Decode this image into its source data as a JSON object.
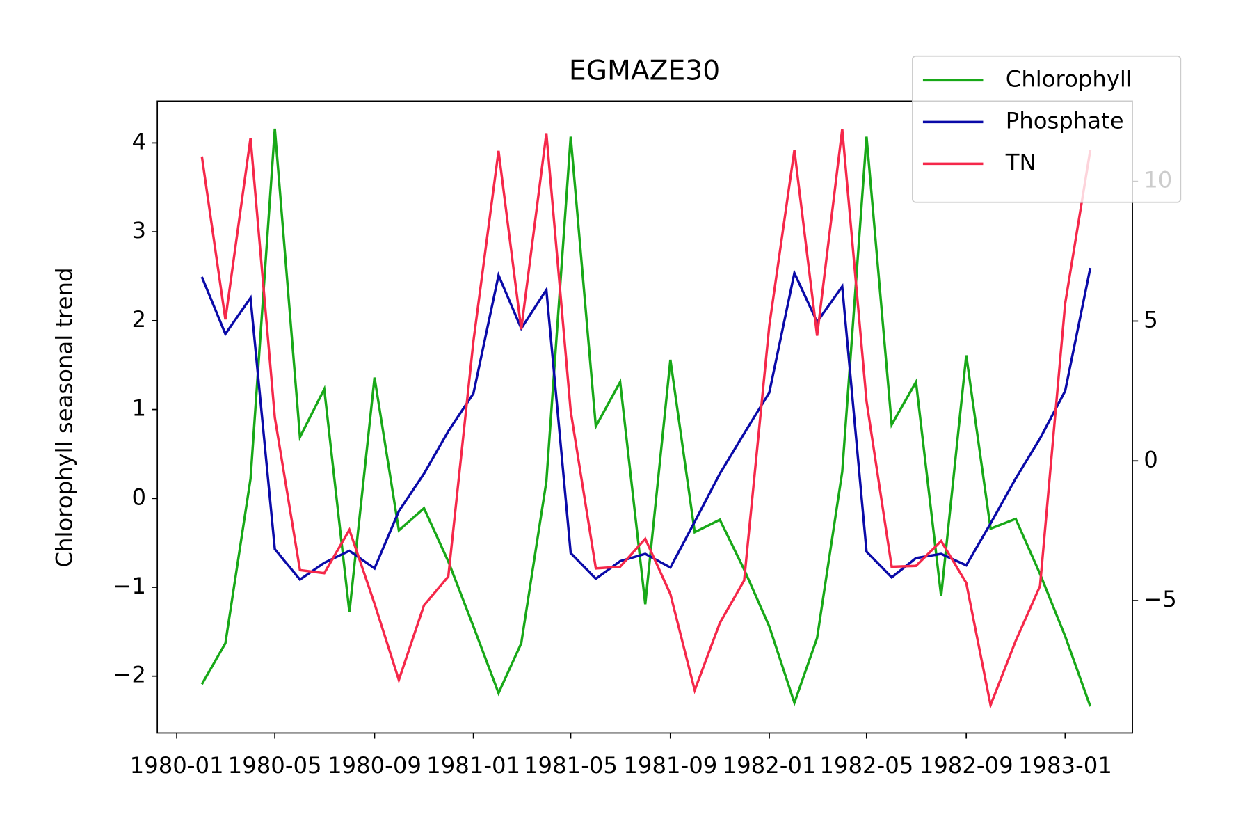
{
  "chart_data": {
    "type": "line",
    "title": "EGMAZE30",
    "ylabel": "Chlorophyll seasonal trend",
    "x": [
      "1980-02",
      "1980-03",
      "1980-04",
      "1980-05",
      "1980-06",
      "1980-07",
      "1980-08",
      "1980-09",
      "1980-10",
      "1980-11",
      "1980-12",
      "1981-01",
      "1981-02",
      "1981-03",
      "1981-04",
      "1981-05",
      "1981-06",
      "1981-07",
      "1981-08",
      "1981-09",
      "1981-10",
      "1981-11",
      "1981-12",
      "1982-01",
      "1982-02",
      "1982-03",
      "1982-04",
      "1982-05",
      "1982-06",
      "1982-07",
      "1982-08",
      "1982-09",
      "1982-10",
      "1982-11",
      "1982-12",
      "1983-01",
      "1983-02"
    ],
    "series": [
      {
        "name": "Chlorophyll",
        "color": "#18a818",
        "values": [
          -2.09,
          -1.63,
          0.22,
          4.16,
          0.69,
          1.23,
          -1.28,
          1.36,
          -0.36,
          -0.11,
          -0.71,
          -1.44,
          -2.19,
          -1.63,
          0.19,
          4.07,
          0.81,
          1.31,
          -1.19,
          1.56,
          -0.38,
          -0.24,
          -0.8,
          -1.44,
          -2.3,
          -1.57,
          0.3,
          4.07,
          0.83,
          1.31,
          -1.1,
          1.61,
          -0.34,
          -0.23,
          -0.85,
          -1.55,
          -2.34
        ]
      },
      {
        "name": "Phosphate",
        "color": "#0a0aa8",
        "axis": "y2",
        "values": [
          6.58,
          4.54,
          5.83,
          -3.16,
          -4.25,
          -3.65,
          -3.22,
          -3.85,
          -1.8,
          -0.46,
          1.06,
          2.41,
          6.64,
          4.74,
          6.12,
          -3.3,
          -4.22,
          -3.59,
          -3.33,
          -3.82,
          -2.18,
          -0.46,
          0.98,
          2.44,
          6.72,
          4.97,
          6.24,
          -3.25,
          -4.17,
          -3.48,
          -3.33,
          -3.74,
          -2.24,
          -0.63,
          0.8,
          2.5,
          6.9
        ]
      },
      {
        "name": "TN",
        "color": "#f5284a",
        "axis": "y2",
        "values": [
          10.89,
          5.06,
          11.55,
          1.55,
          -3.91,
          -4.02,
          -2.47,
          -5.11,
          -7.84,
          -5.17,
          -4.14,
          4.28,
          11.09,
          4.71,
          11.72,
          1.78,
          -3.85,
          -3.79,
          -2.79,
          -4.77,
          -8.21,
          -5.8,
          -4.28,
          4.83,
          11.12,
          4.48,
          11.87,
          2.13,
          -3.79,
          -3.76,
          -2.87,
          -4.37,
          -8.74,
          -6.44,
          -4.48,
          5.63,
          11.12
        ]
      }
    ],
    "xlim": [
      "1979-12-08",
      "1983-03-25"
    ],
    "xticks": [
      "1980-01",
      "1980-05",
      "1980-09",
      "1981-01",
      "1981-05",
      "1981-09",
      "1982-01",
      "1982-05",
      "1982-09",
      "1983-01"
    ],
    "ylim": [
      -2.64,
      4.47
    ],
    "yticks": [
      {
        "value": -2,
        "label": "−2"
      },
      {
        "value": -1,
        "label": "−1"
      },
      0,
      1,
      2,
      3,
      4
    ],
    "y2lim": [
      -9.74,
      12.87
    ],
    "y2ticks": [
      {
        "value": -5,
        "label": "−5"
      },
      0,
      5,
      10
    ],
    "legend": "upper right"
  }
}
